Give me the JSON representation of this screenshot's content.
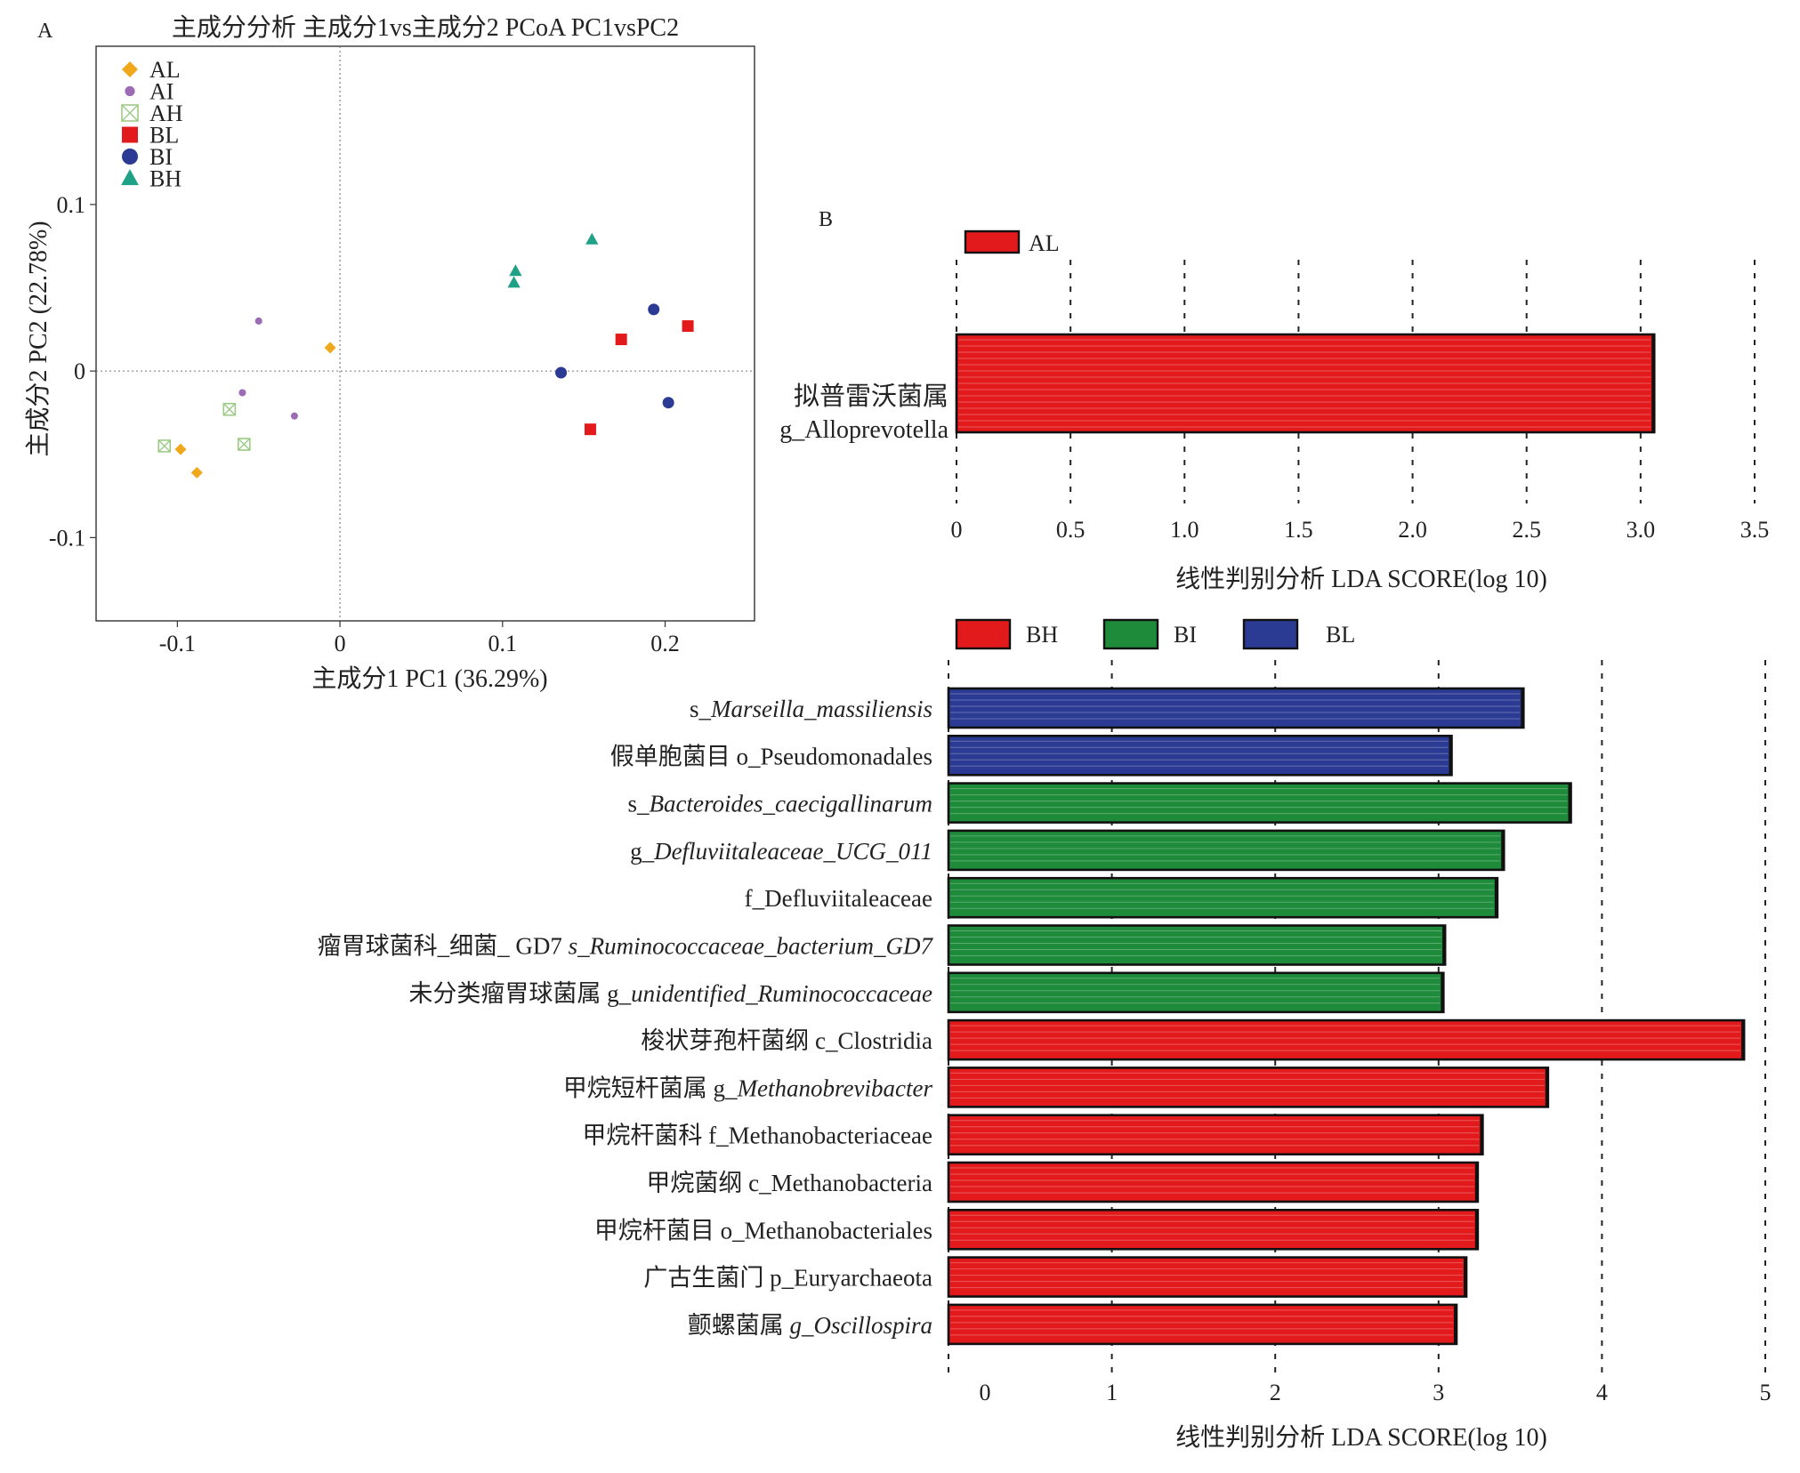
{
  "chart_data": [
    {
      "panel_label": "A",
      "type": "scatter",
      "title": "主成分分析 主成分1vs主成分2 PCoA PC1vsPC2",
      "xlabel": "主成分1 PC1 (36.29%)",
      "ylabel": "主成分2 PC2 (22.78%)",
      "xlim": [
        -0.15,
        0.255
      ],
      "ylim": [
        -0.15,
        0.195
      ],
      "x_ticks": [
        -0.1,
        0,
        0.1,
        0.2
      ],
      "x_tick_labels": [
        "-0.1",
        "0",
        "0.1",
        "0.2"
      ],
      "y_ticks": [
        -0.1,
        0,
        0.1
      ],
      "y_tick_labels": [
        "-0.1",
        "0",
        "0.1"
      ],
      "grid": false,
      "reference_lines": {
        "x": 0,
        "y": 0
      },
      "legend_position": "top-left",
      "series": [
        {
          "name": "AL",
          "marker": "diamond",
          "color": "#F2A81D",
          "points": [
            [
              -0.006,
              0.014
            ],
            [
              -0.098,
              -0.047
            ],
            [
              -0.088,
              -0.061
            ]
          ]
        },
        {
          "name": "AI",
          "marker": "circle-small",
          "color": "#9B6BB5",
          "points": [
            [
              -0.05,
              0.03
            ],
            [
              -0.06,
              -0.013
            ],
            [
              -0.028,
              -0.027
            ]
          ]
        },
        {
          "name": "AH",
          "marker": "boxed-x",
          "color": "#9CCB86",
          "points": [
            [
              -0.068,
              -0.023
            ],
            [
              -0.108,
              -0.045
            ],
            [
              -0.059,
              -0.044
            ]
          ]
        },
        {
          "name": "BL",
          "marker": "square",
          "color": "#E31A1C",
          "points": [
            [
              0.173,
              0.019
            ],
            [
              0.214,
              0.027
            ],
            [
              0.154,
              -0.035
            ]
          ]
        },
        {
          "name": "BI",
          "marker": "circle",
          "color": "#2B3A93",
          "points": [
            [
              0.193,
              0.037
            ],
            [
              0.136,
              -0.001
            ],
            [
              0.202,
              -0.019
            ]
          ]
        },
        {
          "name": "BH",
          "marker": "triangle",
          "color": "#1FA187",
          "points": [
            [
              0.155,
              0.079
            ],
            [
              0.108,
              0.06
            ],
            [
              0.107,
              0.053
            ]
          ]
        }
      ]
    },
    {
      "panel_label": "B",
      "type": "bar",
      "orientation": "horizontal",
      "xlabel": "线性判别分析 LDA SCORE(log 10)",
      "xlim": [
        0,
        3.5
      ],
      "x_ticks": [
        0,
        0.5,
        1.0,
        1.5,
        2.0,
        2.5,
        3.0,
        3.5
      ],
      "x_tick_labels": [
        "0",
        "0.5",
        "1.0",
        "1.5",
        "2.0",
        "2.5",
        "3.0",
        "3.5"
      ],
      "legend": [
        {
          "name": "AL",
          "color": "#E31A1C"
        }
      ],
      "bars": [
        {
          "label_cn": "拟普雷沃菌属",
          "label_latin": "g_Alloprevotella",
          "value": 3.06,
          "group": "AL",
          "color": "#E31A1C"
        }
      ]
    },
    {
      "type": "bar",
      "orientation": "horizontal",
      "xlabel": "线性判别分析 LDA SCORE(log 10)",
      "xlim": [
        0,
        5
      ],
      "x_ticks": [
        0,
        1,
        2,
        3,
        4,
        5
      ],
      "x_tick_labels": [
        "0",
        "1",
        "2",
        "3",
        "4",
        "5"
      ],
      "legend": [
        {
          "name": "BH",
          "color": "#E31A1C"
        },
        {
          "name": "BI",
          "color": "#1E8B3A"
        },
        {
          "name": "BL",
          "color": "#2B3A93"
        }
      ],
      "bars": [
        {
          "label": [
            {
              "t": "s_"
            },
            {
              "t": "Marseilla_massiliensis",
              "i": true
            }
          ],
          "value": 3.52,
          "group": "BL",
          "color": "#2B3A93"
        },
        {
          "label": [
            {
              "t": "假单胞菌目 o_Pseudomonadales"
            }
          ],
          "value": 3.08,
          "group": "BL",
          "color": "#2B3A93"
        },
        {
          "label": [
            {
              "t": "s_"
            },
            {
              "t": "Bacteroides_caecigallinarum",
              "i": true
            }
          ],
          "value": 3.81,
          "group": "BI",
          "color": "#1E8B3A"
        },
        {
          "label": [
            {
              "t": "g_"
            },
            {
              "t": "Defluviitaleaceae_UCG_011",
              "i": true
            }
          ],
          "value": 3.4,
          "group": "BI",
          "color": "#1E8B3A"
        },
        {
          "label": [
            {
              "t": "f_Defluviitaleaceae"
            }
          ],
          "value": 3.36,
          "group": "BI",
          "color": "#1E8B3A"
        },
        {
          "label": [
            {
              "t": "瘤胃球菌科_细菌_ GD7 "
            },
            {
              "t": "s_Ruminococcaceae_bacterium_GD7",
              "i": true
            }
          ],
          "value": 3.04,
          "group": "BI",
          "color": "#1E8B3A"
        },
        {
          "label": [
            {
              "t": "未分类瘤胃球菌属 g_"
            },
            {
              "t": "unidentified_Ruminococcaceae",
              "i": true
            }
          ],
          "value": 3.03,
          "group": "BI",
          "color": "#1E8B3A"
        },
        {
          "label": [
            {
              "t": "梭状芽孢杆菌纲 c_Clostridia"
            }
          ],
          "value": 4.87,
          "group": "BH",
          "color": "#E31A1C"
        },
        {
          "label": [
            {
              "t": "甲烷短杆菌属 g_"
            },
            {
              "t": "Methanobrevibacter",
              "i": true
            }
          ],
          "value": 3.67,
          "group": "BH",
          "color": "#E31A1C"
        },
        {
          "label": [
            {
              "t": "甲烷杆菌科 f_Methanobacteriaceae"
            }
          ],
          "value": 3.27,
          "group": "BH",
          "color": "#E31A1C"
        },
        {
          "label": [
            {
              "t": "甲烷菌纲 c_Methanobacteria"
            }
          ],
          "value": 3.24,
          "group": "BH",
          "color": "#E31A1C"
        },
        {
          "label": [
            {
              "t": "甲烷杆菌目 o_Methanobacteriales"
            }
          ],
          "value": 3.24,
          "group": "BH",
          "color": "#E31A1C"
        },
        {
          "label": [
            {
              "t": "广古生菌门 p_Euryarchaeota"
            }
          ],
          "value": 3.17,
          "group": "BH",
          "color": "#E31A1C"
        },
        {
          "label": [
            {
              "t": "颤螺菌属 "
            },
            {
              "t": "g_Oscillospira",
              "i": true
            }
          ],
          "value": 3.11,
          "group": "BH",
          "color": "#E31A1C"
        }
      ]
    }
  ]
}
